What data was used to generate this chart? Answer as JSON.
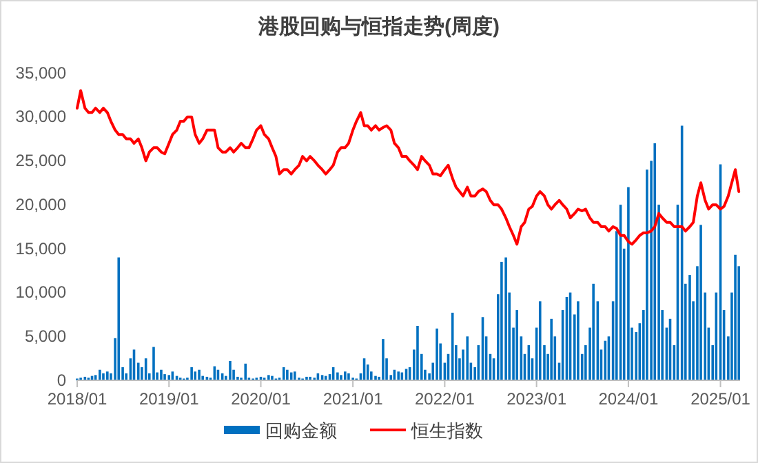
{
  "chart_data": {
    "type": "bar",
    "title": "港股回购与恒指走势(周度)",
    "x": [
      "2018-01-01",
      "2018-01-15",
      "2018-02-01",
      "2018-02-15",
      "2018-03-01",
      "2018-03-15",
      "2018-04-01",
      "2018-04-15",
      "2018-05-01",
      "2018-05-15",
      "2018-06-01",
      "2018-06-15",
      "2018-07-01",
      "2018-07-15",
      "2018-08-01",
      "2018-08-15",
      "2018-09-01",
      "2018-09-15",
      "2018-10-01",
      "2018-10-15",
      "2018-11-01",
      "2018-11-15",
      "2018-12-01",
      "2018-12-15",
      "2019-01-01",
      "2019-01-15",
      "2019-02-01",
      "2019-02-15",
      "2019-03-01",
      "2019-03-15",
      "2019-04-01",
      "2019-04-15",
      "2019-05-01",
      "2019-05-15",
      "2019-06-01",
      "2019-06-15",
      "2019-07-01",
      "2019-07-15",
      "2019-08-01",
      "2019-08-15",
      "2019-09-01",
      "2019-09-15",
      "2019-10-01",
      "2019-10-15",
      "2019-11-01",
      "2019-11-15",
      "2019-12-01",
      "2019-12-15",
      "2020-01-01",
      "2020-01-15",
      "2020-02-01",
      "2020-02-15",
      "2020-03-01",
      "2020-03-15",
      "2020-04-01",
      "2020-04-15",
      "2020-05-01",
      "2020-05-15",
      "2020-06-01",
      "2020-06-15",
      "2020-07-01",
      "2020-07-15",
      "2020-08-01",
      "2020-08-15",
      "2020-09-01",
      "2020-09-15",
      "2020-10-01",
      "2020-10-15",
      "2020-11-01",
      "2020-11-15",
      "2020-12-01",
      "2020-12-15",
      "2021-01-01",
      "2021-01-15",
      "2021-02-01",
      "2021-02-15",
      "2021-03-01",
      "2021-03-15",
      "2021-04-01",
      "2021-04-15",
      "2021-05-01",
      "2021-05-15",
      "2021-06-01",
      "2021-06-15",
      "2021-07-01",
      "2021-07-15",
      "2021-08-01",
      "2021-08-15",
      "2021-09-01",
      "2021-09-15",
      "2021-10-01",
      "2021-10-15",
      "2021-11-01",
      "2021-11-15",
      "2021-12-01",
      "2021-12-15",
      "2022-01-01",
      "2022-01-15",
      "2022-02-01",
      "2022-02-15",
      "2022-03-01",
      "2022-03-15",
      "2022-04-01",
      "2022-04-15",
      "2022-05-01",
      "2022-05-15",
      "2022-06-01",
      "2022-06-15",
      "2022-07-01",
      "2022-07-15",
      "2022-08-01",
      "2022-08-15",
      "2022-09-01",
      "2022-09-15",
      "2022-10-01",
      "2022-10-15",
      "2022-11-01",
      "2022-11-15",
      "2022-12-01",
      "2022-12-15",
      "2023-01-01",
      "2023-01-15",
      "2023-02-01",
      "2023-02-15",
      "2023-03-01",
      "2023-03-15",
      "2023-04-01",
      "2023-04-15",
      "2023-05-01",
      "2023-05-15",
      "2023-06-01",
      "2023-06-15",
      "2023-07-01",
      "2023-07-15",
      "2023-08-01",
      "2023-08-15",
      "2023-09-01",
      "2023-09-15",
      "2023-10-01",
      "2023-10-15",
      "2023-11-01",
      "2023-11-15",
      "2023-12-01",
      "2023-12-15",
      "2024-01-01",
      "2024-01-15",
      "2024-02-01",
      "2024-02-15",
      "2024-03-01",
      "2024-03-15",
      "2024-04-01",
      "2024-04-15",
      "2024-05-01",
      "2024-05-15",
      "2024-06-01",
      "2024-06-15",
      "2024-07-01",
      "2024-07-15",
      "2024-08-01",
      "2024-08-15",
      "2024-09-01",
      "2024-09-15",
      "2024-10-01",
      "2024-10-15",
      "2024-11-01",
      "2024-11-15",
      "2024-12-01",
      "2024-12-15",
      "2025-01-01",
      "2025-01-15",
      "2025-02-01",
      "2025-02-15",
      "2025-03-01",
      "2025-03-15"
    ],
    "series": [
      {
        "name": "回购金额",
        "color": "#0070c0",
        "values": [
          200,
          300,
          400,
          300,
          500,
          600,
          1200,
          800,
          1000,
          800,
          4800,
          14000,
          1500,
          800,
          2500,
          3500,
          2000,
          1500,
          2500,
          800,
          3800,
          900,
          1200,
          700,
          600,
          1000,
          500,
          300,
          200,
          300,
          1500,
          1000,
          1200,
          500,
          400,
          300,
          1600,
          1200,
          800,
          500,
          2200,
          1200,
          400,
          300,
          1900,
          300,
          200,
          300,
          400,
          300,
          600,
          500,
          200,
          300,
          1500,
          1200,
          900,
          1000,
          300,
          200,
          400,
          400,
          300,
          800,
          600,
          500,
          700,
          1500,
          900,
          600,
          1000,
          800,
          300,
          200,
          800,
          2500,
          1800,
          1000,
          500,
          400,
          4700,
          2500,
          600,
          1200,
          1000,
          900,
          1300,
          1500,
          3500,
          6200,
          3000,
          1200,
          800,
          2000,
          5900,
          4200,
          2000,
          3000,
          7700,
          4000,
          2500,
          3500,
          5000,
          2000,
          1500,
          4000,
          7200,
          5000,
          3000,
          2500,
          9800,
          13500,
          14000,
          10000,
          6000,
          8000,
          5000,
          3000,
          4000,
          2500,
          6000,
          9000,
          4000,
          3000,
          7000,
          5000,
          2000,
          8000,
          9500,
          10000,
          7500,
          9000,
          3000,
          4000,
          6000,
          11000,
          9000,
          3500,
          4500,
          5000,
          9000,
          17000,
          20000,
          15000,
          22000,
          6000,
          5500,
          6500,
          8000,
          24000,
          25000,
          27000,
          20000,
          8000,
          6000,
          7000,
          4000,
          20000,
          29000,
          11000,
          12000,
          9000,
          13000,
          17700,
          10000,
          6000,
          4000,
          10000,
          24600,
          8000,
          5000,
          10000,
          14300,
          13000
        ]
      },
      {
        "name": "恒生指数",
        "type": "line",
        "color": "#ff0000",
        "values": [
          31000,
          33000,
          31000,
          30500,
          30500,
          31000,
          30500,
          31000,
          30500,
          29500,
          28500,
          28000,
          28000,
          27500,
          27500,
          27000,
          27500,
          26500,
          25000,
          26000,
          26500,
          26500,
          26000,
          25800,
          27000,
          28000,
          28500,
          29500,
          29500,
          30000,
          30000,
          28000,
          27000,
          27500,
          28500,
          28500,
          28500,
          26500,
          26000,
          26000,
          26500,
          26000,
          26500,
          27000,
          26500,
          26500,
          27500,
          28500,
          29000,
          28000,
          27500,
          26500,
          25500,
          23500,
          24000,
          24000,
          23500,
          24000,
          24500,
          25500,
          25000,
          25500,
          25000,
          24500,
          24000,
          23500,
          24000,
          24500,
          26000,
          26500,
          26500,
          27000,
          28500,
          29500,
          30500,
          29000,
          29000,
          28500,
          29000,
          28500,
          28800,
          29000,
          28500,
          27000,
          26500,
          25500,
          25500,
          25000,
          24500,
          24000,
          25500,
          25000,
          24500,
          23500,
          23500,
          23300,
          24000,
          24500,
          23000,
          22000,
          21500,
          21000,
          22000,
          21000,
          21000,
          21500,
          21800,
          21500,
          20500,
          20000,
          20000,
          19500,
          18500,
          17500,
          16500,
          15500,
          17500,
          18000,
          19500,
          19800,
          21000,
          21500,
          21000,
          20000,
          19500,
          20000,
          20500,
          20000,
          19500,
          18500,
          19000,
          19500,
          19300,
          19500,
          18500,
          18000,
          18000,
          17500,
          17500,
          17000,
          17500,
          17300,
          16500,
          16500,
          15800,
          15500,
          16000,
          16500,
          16800,
          16800,
          17000,
          17500,
          19000,
          18500,
          18000,
          18000,
          17500,
          17500,
          17500,
          17000,
          17500,
          18000,
          21000,
          22500,
          20500,
          19500,
          20000,
          20000,
          19500,
          19800,
          21000,
          22500,
          24000,
          21500
        ]
      }
    ],
    "xlim": [
      "2018-01-01",
      "2025-03-20"
    ],
    "xticks": [
      {
        "value": "2018-01-01",
        "label": "2018/01"
      },
      {
        "value": "2019-01-01",
        "label": "2019/01"
      },
      {
        "value": "2020-01-01",
        "label": "2020/01"
      },
      {
        "value": "2021-01-01",
        "label": "2021/01"
      },
      {
        "value": "2022-01-01",
        "label": "2022/01"
      },
      {
        "value": "2023-01-01",
        "label": "2023/01"
      },
      {
        "value": "2024-01-01",
        "label": "2024/01"
      },
      {
        "value": "2025-01-01",
        "label": "2025/01"
      }
    ],
    "ylim": [
      0,
      35000
    ],
    "yticks": [
      0,
      {
        "value": 5000,
        "label": "5,000"
      },
      {
        "value": 10000,
        "label": "10,000"
      },
      {
        "value": 15000,
        "label": "15,000"
      },
      {
        "value": 20000,
        "label": "20,000"
      },
      {
        "value": 25000,
        "label": "25,000"
      },
      {
        "value": 30000,
        "label": "30,000"
      },
      {
        "value": 35000,
        "label": "35,000"
      }
    ],
    "legend": "bottom"
  }
}
